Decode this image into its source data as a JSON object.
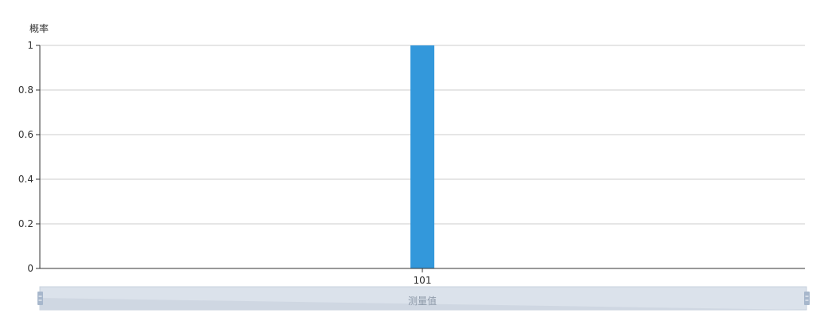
{
  "chart_data": {
    "type": "bar",
    "ylabel": "概率",
    "xlabel": "",
    "categories": [
      "101"
    ],
    "values": [
      1
    ],
    "ylim": [
      0,
      1
    ],
    "yticks": [
      0,
      0.2,
      0.4,
      0.6,
      0.8,
      1
    ],
    "ytick_labels": [
      "0",
      "0.2",
      "0.4",
      "0.6",
      "0.8",
      "1"
    ],
    "grid": true,
    "bar_color": "#3398db",
    "datazoom": {
      "label": "测量值",
      "start_fraction": 0,
      "end_fraction": 1,
      "fill_color": "#dbe2eb",
      "handle_color": "#a7b7cc"
    }
  }
}
